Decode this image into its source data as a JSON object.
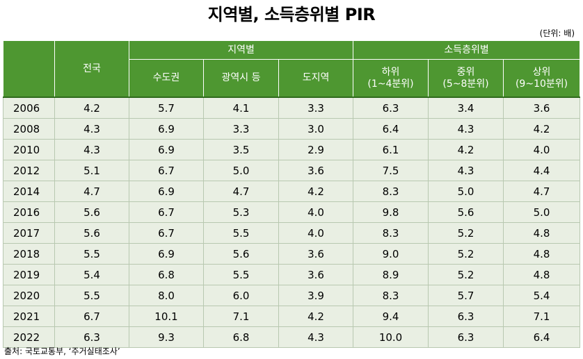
{
  "title": "지역별, 소득층위별 PIR",
  "unit": "(단위: 배)",
  "table": {
    "year_header": "",
    "national_header": "전국",
    "region_group": "지역별",
    "income_group": "소득층위별",
    "region_columns": [
      "수도권",
      "광역시 등",
      "도지역"
    ],
    "income_columns": [
      {
        "name": "하위",
        "range": "(1~4분위)"
      },
      {
        "name": "중위",
        "range": "(5~8분위)"
      },
      {
        "name": "상위",
        "range": "(9~10분위)"
      }
    ],
    "rows": [
      {
        "year": "2006",
        "values": [
          "4.2",
          "5.7",
          "4.1",
          "3.3",
          "6.3",
          "3.4",
          "3.6"
        ]
      },
      {
        "year": "2008",
        "values": [
          "4.3",
          "6.9",
          "3.3",
          "3.0",
          "6.4",
          "4.3",
          "4.2"
        ]
      },
      {
        "year": "2010",
        "values": [
          "4.3",
          "6.9",
          "3.5",
          "2.9",
          "6.1",
          "4.2",
          "4.0"
        ]
      },
      {
        "year": "2012",
        "values": [
          "5.1",
          "6.7",
          "5.0",
          "3.6",
          "7.5",
          "4.3",
          "4.4"
        ]
      },
      {
        "year": "2014",
        "values": [
          "4.7",
          "6.9",
          "4.7",
          "4.2",
          "8.3",
          "5.0",
          "4.7"
        ]
      },
      {
        "year": "2016",
        "values": [
          "5.6",
          "6.7",
          "5.3",
          "4.0",
          "9.8",
          "5.6",
          "5.0"
        ]
      },
      {
        "year": "2017",
        "values": [
          "5.6",
          "6.7",
          "5.5",
          "4.0",
          "8.3",
          "5.2",
          "4.8"
        ]
      },
      {
        "year": "2018",
        "values": [
          "5.5",
          "6.9",
          "5.6",
          "3.6",
          "9.0",
          "5.2",
          "4.8"
        ]
      },
      {
        "year": "2019",
        "values": [
          "5.4",
          "6.8",
          "5.5",
          "3.6",
          "8.9",
          "5.2",
          "4.8"
        ]
      },
      {
        "year": "2020",
        "values": [
          "5.5",
          "8.0",
          "6.0",
          "3.9",
          "8.3",
          "5.7",
          "5.4"
        ]
      },
      {
        "year": "2021",
        "values": [
          "6.7",
          "10.1",
          "7.1",
          "4.2",
          "9.4",
          "6.3",
          "7.1"
        ]
      },
      {
        "year": "2022",
        "values": [
          "6.3",
          "9.3",
          "6.8",
          "4.3",
          "10.0",
          "6.3",
          "6.4"
        ]
      }
    ]
  },
  "source": "출처: 국토교통부, ‘주거실태조사’",
  "colors": {
    "header_bg": "#4e9731",
    "header_text": "#ffffff",
    "cell_bg": "#e9efe3"
  }
}
